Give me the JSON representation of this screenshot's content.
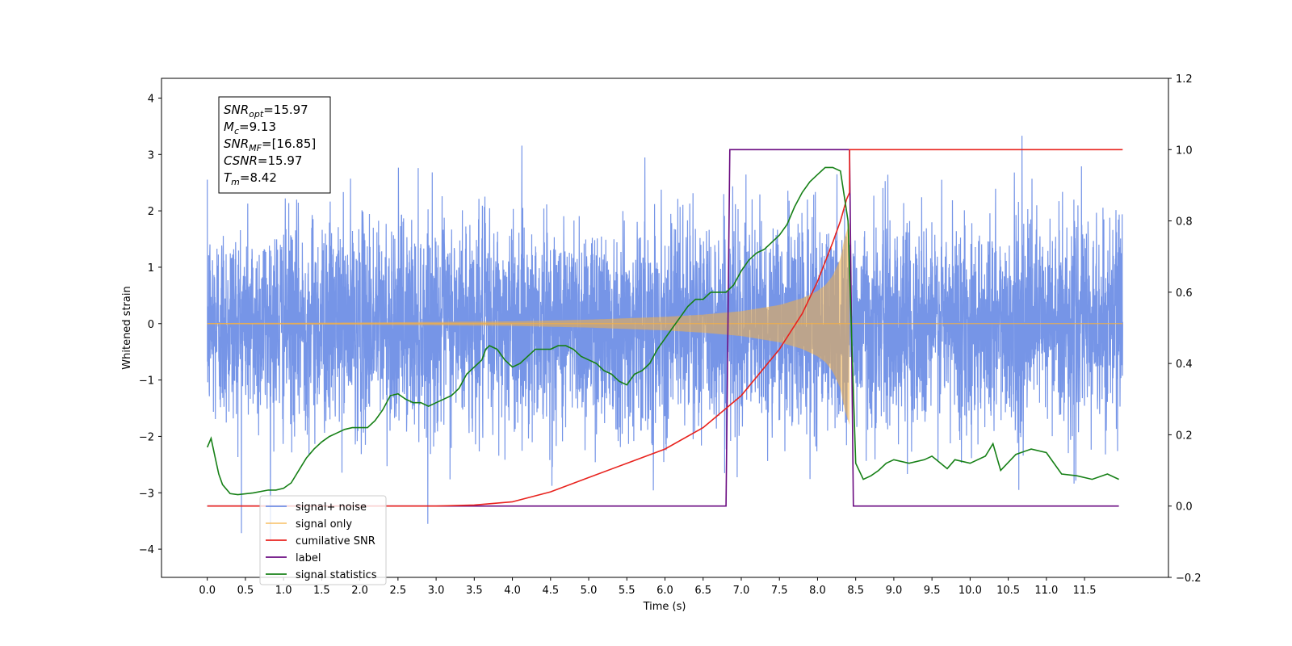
{
  "chart_data": {
    "type": "line",
    "xlabel": "Time (s)",
    "ylabel": "Whitened strain",
    "xlim": [
      -0.6,
      12.6
    ],
    "ylim": [
      -4.5,
      4.35
    ],
    "ylim_right": [
      -0.2,
      1.2
    ],
    "x_ticks": [
      "0.0",
      "0.5",
      "1.0",
      "1.5",
      "2.0",
      "2.5",
      "3.0",
      "3.5",
      "4.0",
      "4.5",
      "5.0",
      "5.5",
      "6.0",
      "6.5",
      "7.0",
      "7.5",
      "8.0",
      "8.5",
      "9.0",
      "9.5",
      "10.0",
      "10.5",
      "11.0",
      "11.5"
    ],
    "y_ticks": [
      "4",
      "3",
      "2",
      "1",
      "0",
      "−1",
      "−2",
      "−3",
      "−4"
    ],
    "y_right_ticks": [
      "1.2",
      "1.0",
      "0.8",
      "0.6",
      "0.4",
      "0.2",
      "0.0",
      "−0.2"
    ],
    "grid": false,
    "legend_position": "lower-left",
    "info_box": {
      "lines": [
        {
          "sym": "SNR",
          "sub": "opt",
          "value": "=15.97"
        },
        {
          "sym": "M",
          "sub": "c",
          "value": "=9.13"
        },
        {
          "sym": "SNR",
          "sub": "MF",
          "value": "=[16.85]"
        },
        {
          "sym": "CSNR",
          "sub": "",
          "value": "=15.97"
        },
        {
          "sym": "T",
          "sub": "m",
          "value": "=8.42"
        }
      ]
    },
    "series": [
      {
        "name": "signal+ noise",
        "axis": "left",
        "color": "#6f8fe6",
        "time_range": [
          0.0,
          12.0
        ],
        "noise_std": 0.92,
        "note_style": "dense noisy trace"
      },
      {
        "name": "signal only",
        "axis": "left",
        "color": "#f5b041",
        "merger_time": 8.42,
        "peak_amplitude": 1.8,
        "envelope_points": {
          "x": [
            0.0,
            2.0,
            3.0,
            4.0,
            5.0,
            6.0,
            6.5,
            7.0,
            7.5,
            7.8,
            8.0,
            8.1,
            8.2,
            8.3,
            8.35,
            8.42
          ],
          "y": [
            0.01,
            0.02,
            0.03,
            0.04,
            0.07,
            0.12,
            0.16,
            0.22,
            0.33,
            0.45,
            0.58,
            0.68,
            0.85,
            1.15,
            1.5,
            1.8
          ]
        }
      },
      {
        "name": "cumilative SNR",
        "axis": "right",
        "color": "#e8231e",
        "x": [
          0.0,
          3.0,
          3.5,
          4.0,
          4.5,
          5.0,
          5.5,
          6.0,
          6.5,
          7.0,
          7.5,
          7.8,
          8.0,
          8.2,
          8.3,
          8.38,
          8.42,
          8.42,
          12.0
        ],
        "y": [
          0.0,
          0.0,
          0.003,
          0.012,
          0.04,
          0.08,
          0.12,
          0.16,
          0.22,
          0.31,
          0.44,
          0.54,
          0.63,
          0.74,
          0.8,
          0.86,
          0.88,
          1.0,
          1.0
        ]
      },
      {
        "name": "label",
        "axis": "right",
        "color": "#6a0a80",
        "x": [
          0.0,
          6.8,
          6.85,
          8.42,
          8.47,
          11.95
        ],
        "y": [
          0.0,
          0.0,
          1.0,
          1.0,
          0.0,
          0.0
        ]
      },
      {
        "name": "signal statistics",
        "axis": "right",
        "color": "#168016",
        "x": [
          0.0,
          0.05,
          0.1,
          0.15,
          0.2,
          0.3,
          0.4,
          0.6,
          0.8,
          0.9,
          1.0,
          1.1,
          1.2,
          1.3,
          1.4,
          1.5,
          1.6,
          1.7,
          1.8,
          1.9,
          2.0,
          2.1,
          2.2,
          2.3,
          2.4,
          2.5,
          2.6,
          2.7,
          2.8,
          2.9,
          3.0,
          3.1,
          3.2,
          3.3,
          3.4,
          3.5,
          3.6,
          3.65,
          3.7,
          3.8,
          3.9,
          4.0,
          4.1,
          4.2,
          4.3,
          4.4,
          4.5,
          4.6,
          4.7,
          4.8,
          4.9,
          5.0,
          5.1,
          5.2,
          5.3,
          5.4,
          5.5,
          5.6,
          5.7,
          5.8,
          5.9,
          6.0,
          6.1,
          6.2,
          6.3,
          6.4,
          6.5,
          6.6,
          6.7,
          6.8,
          6.9,
          7.0,
          7.1,
          7.2,
          7.3,
          7.4,
          7.5,
          7.6,
          7.7,
          7.8,
          7.9,
          8.0,
          8.1,
          8.2,
          8.3,
          8.4,
          8.45,
          8.5,
          8.6,
          8.7,
          8.8,
          8.9,
          9.0,
          9.2,
          9.4,
          9.5,
          9.7,
          9.8,
          10.0,
          10.2,
          10.3,
          10.4,
          10.6,
          10.8,
          11.0,
          11.2,
          11.4,
          11.6,
          11.8,
          11.95
        ],
        "y": [
          0.165,
          0.19,
          0.14,
          0.09,
          0.06,
          0.035,
          0.032,
          0.037,
          0.045,
          0.045,
          0.05,
          0.065,
          0.1,
          0.135,
          0.16,
          0.18,
          0.195,
          0.205,
          0.215,
          0.22,
          0.22,
          0.22,
          0.24,
          0.27,
          0.31,
          0.315,
          0.3,
          0.29,
          0.29,
          0.28,
          0.29,
          0.3,
          0.31,
          0.33,
          0.37,
          0.39,
          0.41,
          0.44,
          0.45,
          0.44,
          0.41,
          0.39,
          0.4,
          0.42,
          0.44,
          0.44,
          0.44,
          0.45,
          0.45,
          0.44,
          0.42,
          0.41,
          0.4,
          0.38,
          0.37,
          0.35,
          0.34,
          0.37,
          0.38,
          0.4,
          0.44,
          0.47,
          0.5,
          0.53,
          0.56,
          0.58,
          0.58,
          0.6,
          0.6,
          0.6,
          0.62,
          0.66,
          0.69,
          0.71,
          0.72,
          0.74,
          0.76,
          0.79,
          0.84,
          0.88,
          0.91,
          0.93,
          0.95,
          0.95,
          0.94,
          0.8,
          0.45,
          0.12,
          0.075,
          0.085,
          0.1,
          0.12,
          0.13,
          0.12,
          0.13,
          0.14,
          0.105,
          0.13,
          0.12,
          0.14,
          0.175,
          0.1,
          0.145,
          0.16,
          0.15,
          0.09,
          0.085,
          0.075,
          0.09,
          0.075
        ]
      }
    ]
  }
}
